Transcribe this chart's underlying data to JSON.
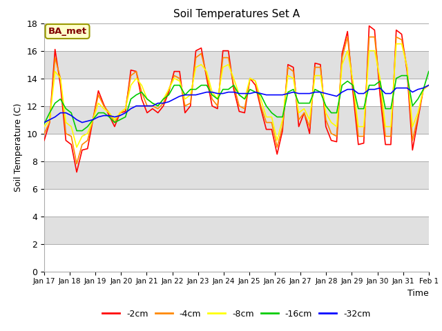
{
  "title": "Soil Temperatures Set A",
  "xlabel": "Time",
  "ylabel": "Soil Temperature (C)",
  "ylim": [
    0,
    18
  ],
  "yticks": [
    0,
    2,
    4,
    6,
    8,
    10,
    12,
    14,
    16,
    18
  ],
  "legend_label": "BA_met",
  "background_color": "#ffffff",
  "band_colors": [
    "#ffffff",
    "#e0e0e0"
  ],
  "series_colors": {
    "-2cm": "#ff0000",
    "-4cm": "#ff8800",
    "-8cm": "#ffff00",
    "-16cm": "#00cc00",
    "-32cm": "#0000ff"
  },
  "x_tick_labels": [
    "Jan 17",
    "Jan 18",
    "Jan 19",
    "Jan 20",
    "Jan 21",
    "Jan 22",
    "Jan 23",
    "Jan 24",
    "Jan 25",
    "Jan 26",
    "Jan 27",
    "Jan 28",
    "Jan 29",
    "Jan 30",
    "Jan 31",
    "Feb 1"
  ],
  "series": {
    "-2cm": [
      9.5,
      10.8,
      16.1,
      13.5,
      9.5,
      9.2,
      7.2,
      8.8,
      8.9,
      11.0,
      13.1,
      12.1,
      11.3,
      10.5,
      11.5,
      11.6,
      14.6,
      14.5,
      12.5,
      11.5,
      11.8,
      11.5,
      12.0,
      13.0,
      14.5,
      14.5,
      11.5,
      12.0,
      16.0,
      16.2,
      14.0,
      12.0,
      11.8,
      16.0,
      16.0,
      13.2,
      11.6,
      11.5,
      14.0,
      13.5,
      11.8,
      10.3,
      10.3,
      8.5,
      10.2,
      15.0,
      14.8,
      10.5,
      11.5,
      10.0,
      15.1,
      15.0,
      10.5,
      9.5,
      9.4,
      15.8,
      17.4,
      13.0,
      9.2,
      9.3,
      17.8,
      17.5,
      12.8,
      9.2,
      9.2,
      17.5,
      17.2,
      14.5,
      8.8,
      11.0,
      13.2,
      13.5
    ],
    "-4cm": [
      10.0,
      10.8,
      15.5,
      14.0,
      10.0,
      9.8,
      7.8,
      9.2,
      9.5,
      11.0,
      12.8,
      12.0,
      11.5,
      10.8,
      11.5,
      11.8,
      14.2,
      14.5,
      13.0,
      12.0,
      12.0,
      11.8,
      12.2,
      13.2,
      14.2,
      14.0,
      12.0,
      12.2,
      15.5,
      15.8,
      14.2,
      12.5,
      12.0,
      15.5,
      15.5,
      13.5,
      12.0,
      11.8,
      14.0,
      13.8,
      12.0,
      10.8,
      10.8,
      9.0,
      10.5,
      14.8,
      14.5,
      11.0,
      11.5,
      10.5,
      14.8,
      14.8,
      11.0,
      10.0,
      9.8,
      15.5,
      17.0,
      13.5,
      9.8,
      9.8,
      17.0,
      17.0,
      13.5,
      9.8,
      9.8,
      17.0,
      16.8,
      14.8,
      9.5,
      11.2,
      13.3,
      13.5
    ],
    "-8cm": [
      10.5,
      11.0,
      14.5,
      14.0,
      10.8,
      10.5,
      9.0,
      9.8,
      10.0,
      11.0,
      12.2,
      11.8,
      11.5,
      11.0,
      11.5,
      11.8,
      13.5,
      14.0,
      13.5,
      12.5,
      12.2,
      12.0,
      12.5,
      13.2,
      14.0,
      13.8,
      12.5,
      12.8,
      14.8,
      15.0,
      14.5,
      13.0,
      12.5,
      14.8,
      15.0,
      14.0,
      12.8,
      12.5,
      14.0,
      13.8,
      12.5,
      11.2,
      11.2,
      9.5,
      11.0,
      14.2,
      14.0,
      11.5,
      11.8,
      11.0,
      14.2,
      14.2,
      11.5,
      10.8,
      10.5,
      15.0,
      16.0,
      13.8,
      10.5,
      10.5,
      16.0,
      16.0,
      14.0,
      10.5,
      10.5,
      16.5,
      16.5,
      14.8,
      10.5,
      11.5,
      13.2,
      13.5
    ],
    "-16cm": [
      10.7,
      11.5,
      12.2,
      12.5,
      11.8,
      11.5,
      10.2,
      10.2,
      10.5,
      11.0,
      11.5,
      11.5,
      11.2,
      10.8,
      11.0,
      11.2,
      12.5,
      12.8,
      13.0,
      12.5,
      12.2,
      12.0,
      12.5,
      12.8,
      13.5,
      13.5,
      12.8,
      13.2,
      13.2,
      13.5,
      13.5,
      12.8,
      12.5,
      13.2,
      13.2,
      13.5,
      12.8,
      12.5,
      13.2,
      13.0,
      12.8,
      12.0,
      11.5,
      11.2,
      11.2,
      13.0,
      13.2,
      12.2,
      12.2,
      12.2,
      13.2,
      13.0,
      12.0,
      11.5,
      11.5,
      13.5,
      13.8,
      13.5,
      11.8,
      11.8,
      13.5,
      13.5,
      13.8,
      11.8,
      11.8,
      14.0,
      14.2,
      14.2,
      12.0,
      12.5,
      13.2,
      14.5
    ],
    "-32cm": [
      10.8,
      11.0,
      11.2,
      11.5,
      11.5,
      11.3,
      11.0,
      10.8,
      10.9,
      11.0,
      11.2,
      11.3,
      11.3,
      11.2,
      11.3,
      11.5,
      11.8,
      12.0,
      12.0,
      12.0,
      12.0,
      12.2,
      12.2,
      12.3,
      12.5,
      12.7,
      12.8,
      12.8,
      12.8,
      12.9,
      13.0,
      13.0,
      12.9,
      12.9,
      13.0,
      13.0,
      12.9,
      12.9,
      12.9,
      13.0,
      12.9,
      12.8,
      12.8,
      12.8,
      12.8,
      12.9,
      13.0,
      12.9,
      12.9,
      12.9,
      13.0,
      13.0,
      12.9,
      12.8,
      12.7,
      13.0,
      13.2,
      13.2,
      12.9,
      12.9,
      13.2,
      13.2,
      13.3,
      12.9,
      12.9,
      13.3,
      13.3,
      13.3,
      13.0,
      13.2,
      13.3,
      13.5
    ]
  }
}
